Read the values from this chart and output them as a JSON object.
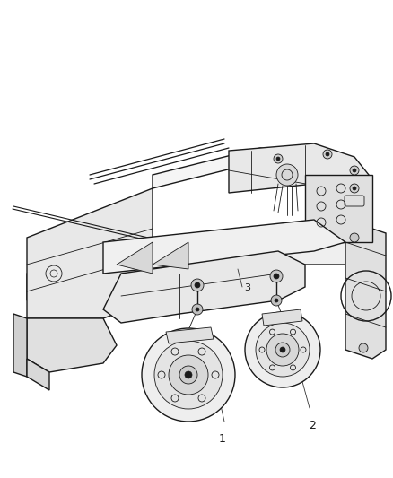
{
  "background_color": "#ffffff",
  "line_color": "#1a1a1a",
  "label_1": "1",
  "label_2": "2",
  "label_3": "3",
  "figsize": [
    4.38,
    5.33
  ],
  "dpi": 100,
  "lw_main": 1.0,
  "lw_thin": 0.6,
  "lw_thick": 1.3
}
